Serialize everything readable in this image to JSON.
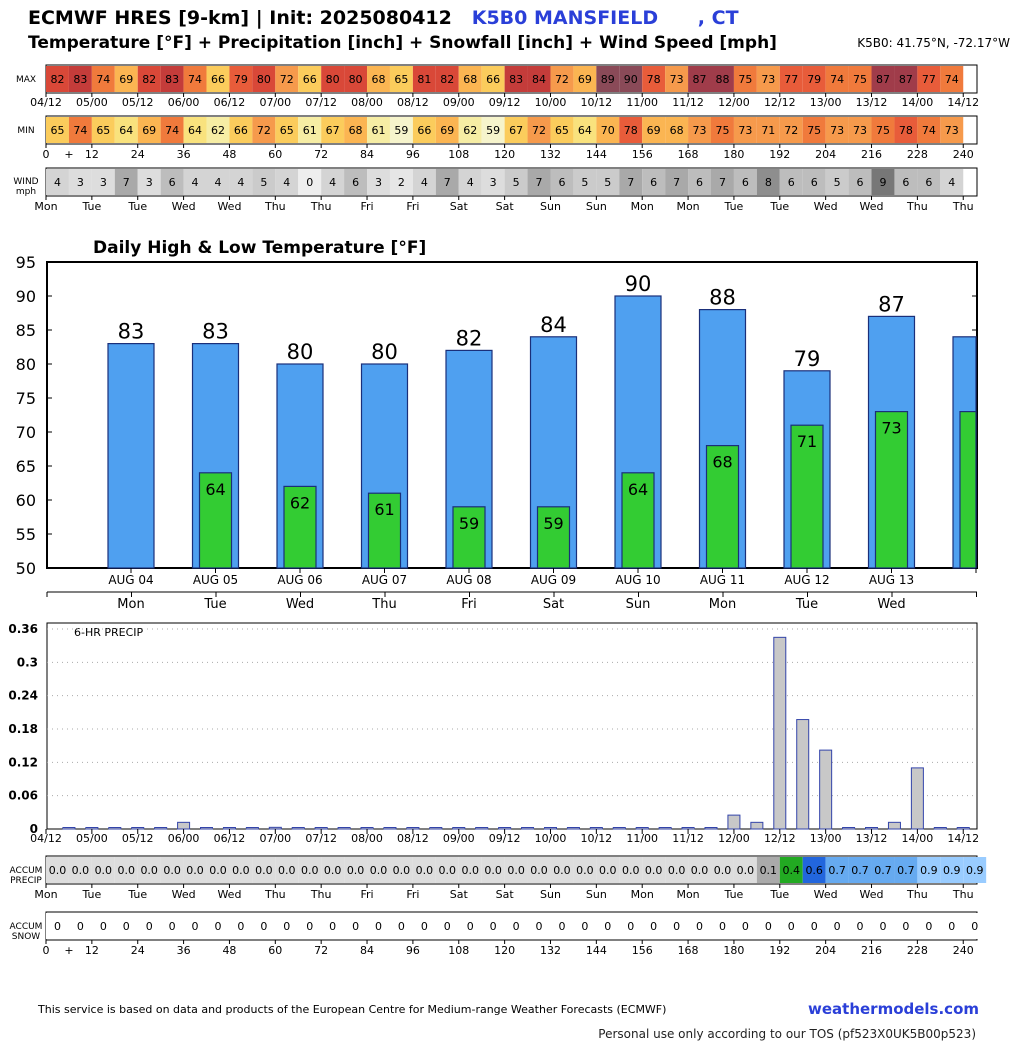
{
  "header": {
    "title_prefix": "ECMWF HRES [9-km] | Init: 2025080412",
    "station": "K5B0 MANSFIELD      , CT",
    "subtitle": "Temperature [°F] + Precipitation [inch] + Snowfall [inch] + Wind Speed [mph]",
    "coords": "K5B0: 41.75°N, -72.17°W"
  },
  "strips": {
    "max_label": "MAX",
    "min_label": "MIN",
    "wind_label": [
      "WIND",
      "mph"
    ],
    "accum_precip_label": [
      "ACCUM",
      "PRECIP"
    ],
    "accum_snow_label": [
      "ACCUM",
      "SNOW"
    ],
    "time_labels": [
      "04/12",
      "05/00",
      "05/12",
      "06/00",
      "06/12",
      "07/00",
      "07/12",
      "08/00",
      "08/12",
      "09/00",
      "09/12",
      "10/00",
      "10/12",
      "11/00",
      "11/12",
      "12/00",
      "12/12",
      "13/00",
      "13/12",
      "14/00",
      "14/12"
    ],
    "hour_labels": [
      "0",
      "+",
      "12",
      "24",
      "36",
      "48",
      "60",
      "72",
      "84",
      "96",
      "108",
      "120",
      "132",
      "144",
      "156",
      "168",
      "180",
      "192",
      "204",
      "216",
      "228",
      "240"
    ],
    "day_labels": [
      "Mon",
      "Tue",
      "Tue",
      "Wed",
      "Wed",
      "Thu",
      "Thu",
      "Fri",
      "Fri",
      "Sat",
      "Sat",
      "Sun",
      "Sun",
      "Mon",
      "Mon",
      "Tue",
      "Tue",
      "Wed",
      "Wed",
      "Thu",
      "Thu"
    ],
    "max_values": [
      82,
      83,
      74,
      69,
      82,
      83,
      74,
      66,
      79,
      80,
      72,
      66,
      80,
      80,
      68,
      65,
      81,
      82,
      68,
      66,
      83,
      84,
      72,
      69,
      89,
      90,
      78,
      73,
      87,
      88,
      75,
      73,
      77,
      79,
      74,
      75,
      87,
      87,
      77,
      74
    ],
    "min_values": [
      65,
      74,
      65,
      64,
      69,
      74,
      64,
      62,
      66,
      72,
      65,
      61,
      67,
      68,
      61,
      59,
      66,
      69,
      62,
      59,
      67,
      72,
      65,
      64,
      70,
      78,
      69,
      68,
      73,
      75,
      73,
      71,
      72,
      75,
      73,
      73,
      75,
      78,
      74,
      73
    ],
    "wind_values": [
      4,
      3,
      3,
      7,
      3,
      6,
      4,
      4,
      4,
      5,
      4,
      0,
      4,
      6,
      3,
      2,
      4,
      7,
      4,
      3,
      5,
      7,
      6,
      5,
      5,
      7,
      6,
      7,
      6,
      7,
      6,
      8,
      6,
      6,
      5,
      6,
      9,
      6,
      6,
      4
    ],
    "accum_precip_values": [
      "0.0",
      "0.0",
      "0.0",
      "0.0",
      "0.0",
      "0.0",
      "0.0",
      "0.0",
      "0.0",
      "0.0",
      "0.0",
      "0.0",
      "0.0",
      "0.0",
      "0.0",
      "0.0",
      "0.0",
      "0.0",
      "0.0",
      "0.0",
      "0.0",
      "0.0",
      "0.0",
      "0.0",
      "0.0",
      "0.0",
      "0.0",
      "0.0",
      "0.0",
      "0.0",
      "0.0",
      "0.1",
      "0.4",
      "0.6",
      "0.7",
      "0.7",
      "0.7",
      "0.7",
      "0.9",
      "0.9",
      "0.9"
    ],
    "accum_snow_values": [
      0,
      0,
      0,
      0,
      0,
      0,
      0,
      0,
      0,
      0,
      0,
      0,
      0,
      0,
      0,
      0,
      0,
      0,
      0,
      0,
      0,
      0,
      0,
      0,
      0,
      0,
      0,
      0,
      0,
      0,
      0,
      0,
      0,
      0,
      0,
      0,
      0,
      0,
      0,
      0,
      0
    ]
  },
  "chart_data": [
    {
      "type": "bar",
      "title": "Daily High & Low Temperature [°F]",
      "categories": [
        "AUG 04",
        "AUG 05",
        "AUG 06",
        "AUG 07",
        "AUG 08",
        "AUG 09",
        "AUG 10",
        "AUG 11",
        "AUG 12",
        "AUG 13",
        ""
      ],
      "weekdays": [
        "Mon",
        "Tue",
        "Wed",
        "Thu",
        "Fri",
        "Sat",
        "Sun",
        "Mon",
        "Tue",
        "Wed"
      ],
      "series": [
        {
          "values": [
            83,
            83,
            80,
            80,
            82,
            84,
            90,
            88,
            79,
            87,
            84
          ],
          "color": "#4fa0f0"
        },
        {
          "values": [
            null,
            64,
            62,
            61,
            59,
            59,
            64,
            68,
            71,
            73,
            73
          ],
          "color": "#33cc33"
        }
      ],
      "high_labels": [
        "83",
        "83",
        "80",
        "80",
        "82",
        "84",
        "90",
        "88",
        "79",
        "87",
        ""
      ],
      "low_labels": [
        "",
        "64",
        "62",
        "61",
        "59",
        "59",
        "64",
        "68",
        "71",
        "73",
        ""
      ],
      "yticks": [
        "95",
        "90",
        "85",
        "80",
        "75",
        "70",
        "65",
        "60",
        "55",
        "50"
      ],
      "ylim": [
        50,
        95
      ],
      "grid": false
    },
    {
      "type": "bar",
      "title": "6-HR PRECIP",
      "x": [
        "04/12",
        "04/18",
        "05/00",
        "05/06",
        "05/12",
        "05/18",
        "06/00",
        "06/06",
        "06/12",
        "06/18",
        "07/00",
        "07/06",
        "07/12",
        "07/18",
        "08/00",
        "08/06",
        "08/12",
        "08/18",
        "09/00",
        "09/06",
        "09/12",
        "09/18",
        "10/00",
        "10/06",
        "10/12",
        "10/18",
        "11/00",
        "11/06",
        "11/12",
        "11/18",
        "12/00",
        "12/06",
        "12/12",
        "12/18",
        "13/00",
        "13/06",
        "13/12",
        "13/18",
        "14/00",
        "14/06"
      ],
      "values": [
        0,
        0,
        0,
        0,
        0,
        0.012,
        0,
        0,
        0,
        0.003,
        0,
        0.001,
        0,
        0,
        0,
        0,
        0,
        0,
        0,
        0,
        0,
        0,
        0,
        0,
        0,
        0,
        0,
        0,
        0,
        0.025,
        0.012,
        0.345,
        0.197,
        0.142,
        0,
        0,
        0.012,
        0.11,
        0,
        0
      ],
      "yticks": [
        "0.36",
        "0.3",
        "0.24",
        "0.18",
        "0.12",
        "0.06",
        "0"
      ],
      "ylim": [
        0,
        0.36
      ],
      "grid": true
    }
  ],
  "footer": {
    "source": "This service is based on data and products of the European Centre for Medium-range Weather Forecasts (ECMWF)",
    "link": "weathermodels.com",
    "tos": "Personal use only according to our TOS (pf523X0UK5B00p523)"
  }
}
